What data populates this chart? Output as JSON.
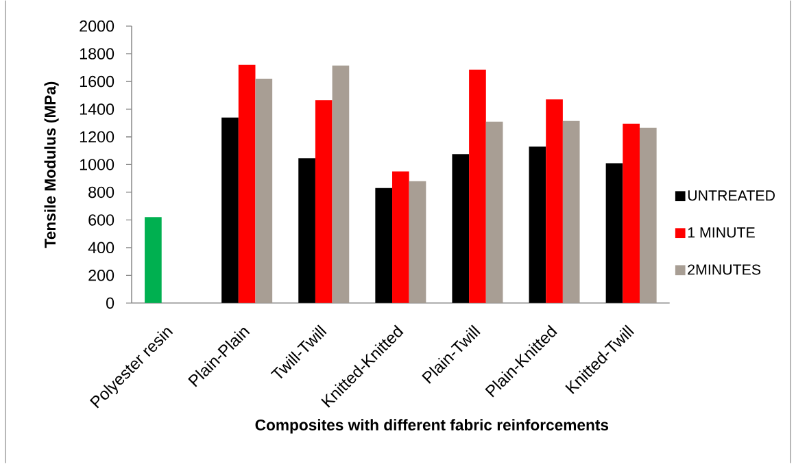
{
  "chart_data": {
    "type": "bar",
    "xlabel": "Composites with different fabric reinforcements",
    "ylabel": "Tensile Modulus (MPa)",
    "categories": [
      "Polyester resin",
      "Plain-Plain",
      "Twill-Twill",
      "Knitted-Knitted",
      "Plain-Twill",
      "Plain-Knitted",
      "Knitted-Twill"
    ],
    "series": [
      {
        "name": "UNTREATED",
        "color": "#000000",
        "colors": [
          "#00b050",
          "#000000",
          "#000000",
          "#000000",
          "#000000",
          "#000000",
          "#000000"
        ],
        "values": [
          620,
          1340,
          1045,
          830,
          1075,
          1130,
          1010
        ]
      },
      {
        "name": "1 MINUTE",
        "color": "#ff0000",
        "values": [
          null,
          1720,
          1465,
          950,
          1685,
          1470,
          1295
        ]
      },
      {
        "name": "2MINUTES",
        "color": "#a89e94",
        "values": [
          null,
          1620,
          1715,
          880,
          1310,
          1315,
          1265
        ]
      }
    ],
    "ylim": [
      0,
      2000
    ],
    "yticks": [
      0,
      200,
      400,
      600,
      800,
      1000,
      1200,
      1400,
      1600,
      1800,
      2000
    ],
    "legend": "right"
  }
}
